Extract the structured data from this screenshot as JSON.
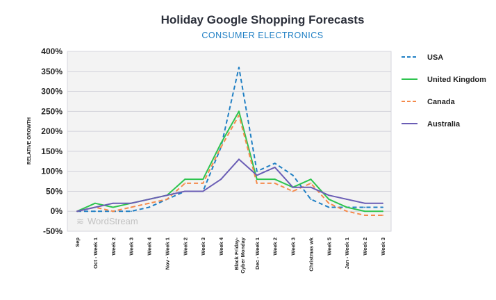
{
  "chart_data": {
    "type": "line",
    "title": "Holiday Google Shopping Forecasts",
    "subtitle": "CONSUMER ELECTRONICS",
    "ylabel": "RELATIVE GROWTH",
    "xlabel": "",
    "ylim": [
      -50,
      400
    ],
    "yticks": [
      "400%",
      "350%",
      "300%",
      "250%",
      "200%",
      "150%",
      "100%",
      "50%",
      "0%",
      "-50%"
    ],
    "ytick_values": [
      400,
      350,
      300,
      250,
      200,
      150,
      100,
      50,
      0,
      -50
    ],
    "grid": true,
    "legend_position": "right",
    "watermark": "WordStream",
    "categories": [
      "Sep",
      "Oct - Week 1",
      "Week 2",
      "Week 3",
      "Week 4",
      "Nov - Week 1",
      "Week 2",
      "Week 3",
      "Week 4",
      "Black Friday-|Cyber Monday",
      "Dec - Week 1",
      "Week 2",
      "Week 3",
      "Christmas wk",
      "Week 5",
      "Jan - Week 1",
      "Week 2",
      "Week 3"
    ],
    "series": [
      {
        "name": "USA",
        "color": "#1f7fc4",
        "dashed": true,
        "values": [
          0,
          0,
          0,
          0,
          10,
          30,
          50,
          50,
          160,
          360,
          100,
          120,
          90,
          30,
          10,
          10,
          10,
          10
        ]
      },
      {
        "name": "United Kingdom",
        "color": "#2ec44f",
        "dashed": false,
        "values": [
          0,
          20,
          10,
          20,
          30,
          40,
          80,
          80,
          170,
          250,
          80,
          80,
          60,
          80,
          30,
          10,
          0,
          0
        ]
      },
      {
        "name": "Canada",
        "color": "#f58a4b",
        "dashed": true,
        "values": [
          0,
          10,
          0,
          10,
          20,
          30,
          70,
          70,
          160,
          240,
          70,
          70,
          50,
          70,
          20,
          0,
          -10,
          -10
        ]
      },
      {
        "name": "Australia",
        "color": "#6a5db5",
        "dashed": false,
        "values": [
          0,
          10,
          20,
          20,
          30,
          40,
          50,
          50,
          80,
          130,
          90,
          110,
          60,
          60,
          40,
          30,
          20,
          20
        ]
      }
    ]
  }
}
